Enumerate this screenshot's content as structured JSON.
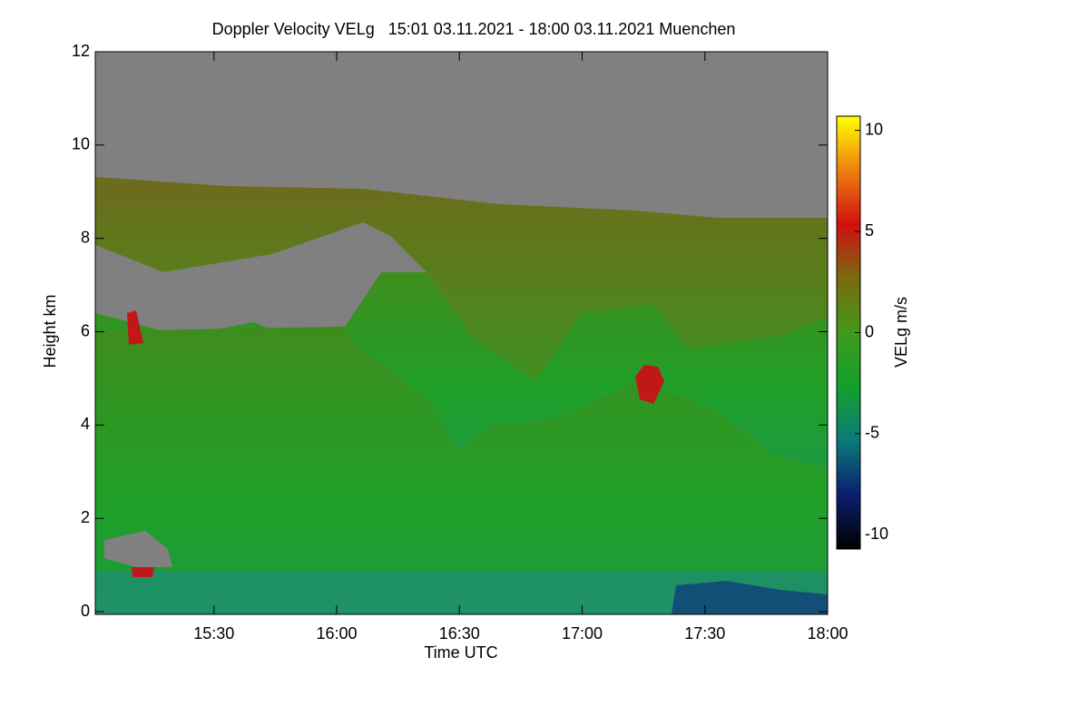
{
  "chart_data": {
    "type": "heatmap",
    "title": "Doppler Velocity VELg   15:01 03.11.2021 - 18:00 03.11.2021 Muenchen",
    "x_label": "Time UTC",
    "y_label": "Height km",
    "xlim": [
      "15:01",
      "18:00"
    ],
    "xticks": [
      "15:30",
      "16:00",
      "16:30",
      "17:00",
      "17:30",
      "18:00"
    ],
    "ylim": [
      0,
      12
    ],
    "yticks": [
      0,
      2,
      4,
      6,
      8,
      10,
      12
    ],
    "colorbar": {
      "label": "VELg m/s",
      "lim": [
        -10.7,
        10.7
      ],
      "ticks": [
        -10,
        -5,
        0,
        5,
        10
      ],
      "colors": [
        "#000000",
        "#0a1f6e",
        "#0b7a7a",
        "#13a02a",
        "#3f9a1a",
        "#7a6a10",
        "#d01010",
        "#f08010",
        "#ffff00"
      ]
    },
    "background_color": "#808080"
  }
}
